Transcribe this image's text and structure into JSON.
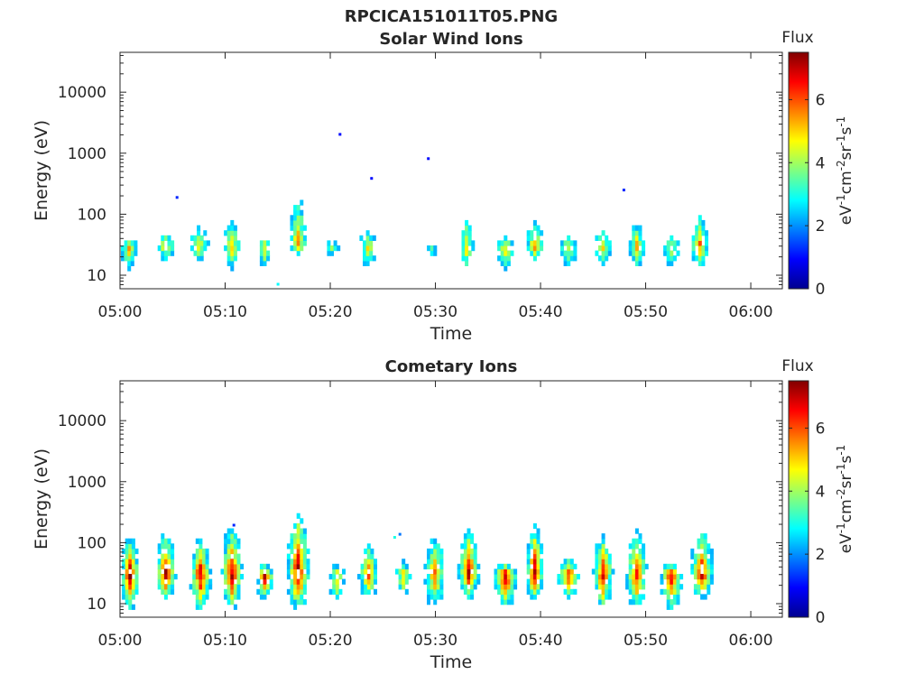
{
  "figure": {
    "title": "RPCICA151011T05.PNG"
  },
  "chart_data": [
    {
      "type": "heatmap",
      "title": "Solar Wind Ions",
      "xlabel": "Time",
      "ylabel": "Energy (eV)",
      "y_scale": "log",
      "ylim": [
        6,
        45000
      ],
      "xlim": [
        "05:00",
        "06:03"
      ],
      "xticks": [
        "05:00",
        "05:10",
        "05:20",
        "05:30",
        "05:40",
        "05:50",
        "06:00"
      ],
      "yticks": [
        "10",
        "100",
        "1000",
        "10000"
      ],
      "colorbar": {
        "label": "Flux",
        "units": [
          "eV",
          "-1",
          "cm",
          "-2",
          "sr",
          "-1",
          "s",
          "-1"
        ],
        "range": [
          0,
          7.5
        ],
        "ticks": [
          "0",
          "2",
          "4",
          "6"
        ],
        "colormap": "jet"
      },
      "grid": false,
      "bursts": [
        {
          "t": 0.7,
          "e_lo": 12,
          "e_hi": 40,
          "peak": 5.3
        },
        {
          "t": 4.2,
          "e_lo": 17,
          "e_hi": 55,
          "peak": 5.0
        },
        {
          "t": 7.3,
          "e_lo": 17,
          "e_hi": 70,
          "peak": 5.0
        },
        {
          "t": 10.5,
          "e_lo": 12,
          "e_hi": 80,
          "peak": 5.4
        },
        {
          "t": 13.6,
          "e_lo": 12,
          "e_hi": 45,
          "peak": 5.0
        },
        {
          "t": 16.8,
          "e_lo": 22,
          "e_hi": 220,
          "peak": 5.6
        },
        {
          "t": 20.0,
          "e_lo": 17,
          "e_hi": 35,
          "peak": 4.0
        },
        {
          "t": 23.4,
          "e_lo": 12,
          "e_hi": 55,
          "peak": 4.6
        },
        {
          "t": 29.5,
          "e_lo": 17,
          "e_hi": 35,
          "peak": 3.5
        },
        {
          "t": 32.8,
          "e_lo": 12,
          "e_hi": 95,
          "peak": 5.0
        },
        {
          "t": 36.5,
          "e_lo": 12,
          "e_hi": 45,
          "peak": 5.0
        },
        {
          "t": 39.3,
          "e_lo": 17,
          "e_hi": 90,
          "peak": 5.6
        },
        {
          "t": 42.5,
          "e_lo": 12,
          "e_hi": 45,
          "peak": 4.6
        },
        {
          "t": 45.8,
          "e_lo": 12,
          "e_hi": 70,
          "peak": 4.6
        },
        {
          "t": 49.0,
          "e_lo": 12,
          "e_hi": 80,
          "peak": 5.0
        },
        {
          "t": 52.3,
          "e_lo": 12,
          "e_hi": 45,
          "peak": 4.6
        },
        {
          "t": 55.0,
          "e_lo": 12,
          "e_hi": 110,
          "peak": 5.6
        }
      ],
      "isolated_points": [
        {
          "t": 5.3,
          "e": 185,
          "value": 1.2
        },
        {
          "t": 20.8,
          "e": 2000,
          "value": 1.0
        },
        {
          "t": 23.8,
          "e": 380,
          "value": 1.0
        },
        {
          "t": 29.2,
          "e": 800,
          "value": 1.0
        },
        {
          "t": 47.8,
          "e": 245,
          "value": 1.2
        },
        {
          "t": 14.9,
          "e": 7,
          "value": 2.8
        }
      ]
    },
    {
      "type": "heatmap",
      "title": "Cometary Ions",
      "xlabel": "Time",
      "ylabel": "Energy (eV)",
      "y_scale": "log",
      "ylim": [
        6,
        45000
      ],
      "xlim": [
        "05:00",
        "06:03"
      ],
      "xticks": [
        "05:00",
        "05:10",
        "05:20",
        "05:30",
        "05:40",
        "05:50",
        "06:00"
      ],
      "yticks": [
        "10",
        "100",
        "1000",
        "10000"
      ],
      "colorbar": {
        "label": "Flux",
        "units": [
          "eV",
          "-1",
          "cm",
          "-2",
          "sr",
          "-1",
          "s",
          "-1"
        ],
        "range": [
          0,
          7.5
        ],
        "ticks": [
          "0",
          "2",
          "4",
          "6"
        ],
        "colormap": "jet"
      },
      "grid": false,
      "bursts": [
        {
          "t": 0.8,
          "e_lo": 8,
          "e_hi": 120,
          "peak": 7.2
        },
        {
          "t": 4.2,
          "e_lo": 12,
          "e_hi": 140,
          "peak": 7.0
        },
        {
          "t": 7.5,
          "e_lo": 8,
          "e_hi": 110,
          "peak": 7.0
        },
        {
          "t": 10.5,
          "e_lo": 8,
          "e_hi": 180,
          "peak": 7.1
        },
        {
          "t": 13.6,
          "e_lo": 12,
          "e_hi": 45,
          "peak": 7.1
        },
        {
          "t": 16.8,
          "e_lo": 8,
          "e_hi": 320,
          "peak": 7.2
        },
        {
          "t": 20.5,
          "e_lo": 8,
          "e_hi": 45,
          "peak": 5.0
        },
        {
          "t": 23.5,
          "e_lo": 12,
          "e_hi": 95,
          "peak": 6.2
        },
        {
          "t": 26.8,
          "e_lo": 12,
          "e_hi": 55,
          "peak": 5.0
        },
        {
          "t": 29.8,
          "e_lo": 8,
          "e_hi": 140,
          "peak": 5.8
        },
        {
          "t": 33.0,
          "e_lo": 12,
          "e_hi": 170,
          "peak": 7.0
        },
        {
          "t": 36.5,
          "e_lo": 8,
          "e_hi": 45,
          "peak": 7.1
        },
        {
          "t": 39.3,
          "e_lo": 12,
          "e_hi": 190,
          "peak": 7.2
        },
        {
          "t": 42.5,
          "e_lo": 12,
          "e_hi": 55,
          "peak": 6.4
        },
        {
          "t": 45.8,
          "e_lo": 8,
          "e_hi": 140,
          "peak": 6.6
        },
        {
          "t": 49.0,
          "e_lo": 8,
          "e_hi": 150,
          "peak": 6.4
        },
        {
          "t": 52.3,
          "e_lo": 8,
          "e_hi": 45,
          "peak": 7.0
        },
        {
          "t": 55.2,
          "e_lo": 12,
          "e_hi": 150,
          "peak": 7.0
        }
      ],
      "isolated_points": [
        {
          "t": 26.0,
          "e": 120,
          "value": 3.0
        },
        {
          "t": 26.5,
          "e": 135,
          "value": 1.8
        },
        {
          "t": 10.7,
          "e": 190,
          "value": 1.2
        }
      ]
    }
  ]
}
